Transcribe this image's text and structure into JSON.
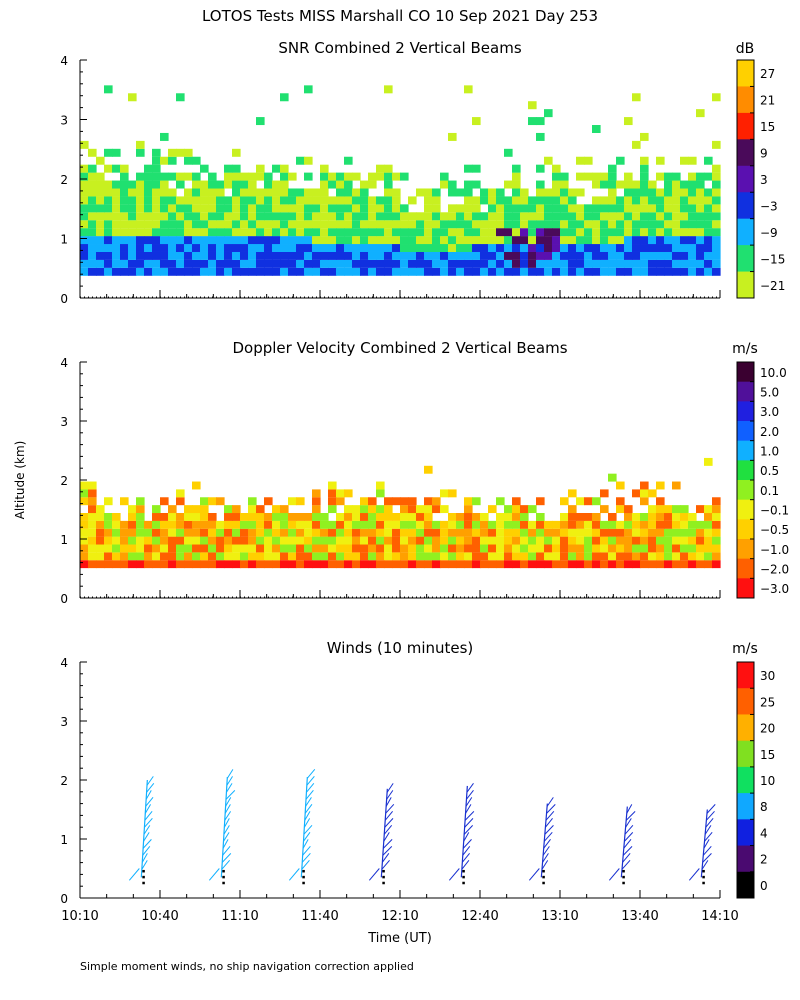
{
  "page": {
    "main_title": "LOTOS Tests MISS Marshall CO  10 Sep 2021 Day 253",
    "ylabel": "Altitude (km)",
    "xlabel": "Time (UT)",
    "footnote": "Simple moment winds, no ship navigation correction applied"
  },
  "chart_data": [
    {
      "type": "heatmap",
      "title": "SNR Combined 2 Vertical Beams",
      "ylim": [
        0,
        4
      ],
      "y_ticks": [
        "0",
        "1",
        "2",
        "3",
        "4"
      ],
      "x_time_range": [
        "10:10",
        "14:10"
      ],
      "colorbar": {
        "unit": "dB",
        "labels": [
          "27",
          "21",
          "15",
          "9",
          "3",
          "−3",
          "−9",
          "−15",
          "−21"
        ],
        "colors": [
          "#ffd000",
          "#ff8c00",
          "#ff2000",
          "#4a0a5a",
          "#5a10b0",
          "#1030e0",
          "#10b0ff",
          "#20e070",
          "#c8f020"
        ]
      }
    },
    {
      "type": "heatmap",
      "title": "Doppler Velocity Combined 2 Vertical Beams",
      "ylim": [
        0,
        4
      ],
      "y_ticks": [
        "0",
        "1",
        "2",
        "3",
        "4"
      ],
      "x_time_range": [
        "10:10",
        "14:10"
      ],
      "colorbar": {
        "unit": "m/s",
        "labels": [
          "10.0",
          "5.0",
          "3.0",
          "2.0",
          "1.0",
          "0.5",
          "0.1",
          "−0.1",
          "−0.5",
          "−1.0",
          "−2.0",
          "−3.0"
        ],
        "colors": [
          "#3a0030",
          "#50109a",
          "#2020e0",
          "#1060ff",
          "#10b0ff",
          "#20e040",
          "#90f020",
          "#f0f010",
          "#ffd000",
          "#ffa000",
          "#ff6000",
          "#ff1010"
        ]
      }
    },
    {
      "type": "scatter",
      "title": "Winds (10 minutes)",
      "ylim": [
        0,
        4
      ],
      "y_ticks": [
        "0",
        "1",
        "2",
        "3",
        "4"
      ],
      "x_ticks": [
        "10:10",
        "10:40",
        "11:10",
        "11:40",
        "12:10",
        "12:40",
        "13:10",
        "13:40",
        "14:10"
      ],
      "colorbar": {
        "unit": "m/s",
        "labels": [
          "30",
          "25",
          "20",
          "15",
          "10",
          "8",
          "4",
          "2",
          "0"
        ],
        "colors": [
          "#ff1010",
          "#ff6000",
          "#ffb000",
          "#80e020",
          "#10e060",
          "#10a8ff",
          "#1020e0",
          "#4a0a70",
          "#000000"
        ]
      },
      "profiles": [
        {
          "time_min": 15,
          "top_km": 2.0,
          "color": "#10b0ff"
        },
        {
          "time_min": 45,
          "top_km": 2.05,
          "color": "#10b0ff"
        },
        {
          "time_min": 75,
          "top_km": 2.05,
          "color": "#10b0ff"
        },
        {
          "time_min": 105,
          "top_km": 1.85,
          "color": "#1830d0"
        },
        {
          "time_min": 135,
          "top_km": 1.9,
          "color": "#1830d0"
        },
        {
          "time_min": 165,
          "top_km": 1.6,
          "color": "#1830d0"
        },
        {
          "time_min": 195,
          "top_km": 1.55,
          "color": "#1830d0"
        },
        {
          "time_min": 225,
          "top_km": 1.5,
          "color": "#1830d0"
        }
      ]
    }
  ]
}
